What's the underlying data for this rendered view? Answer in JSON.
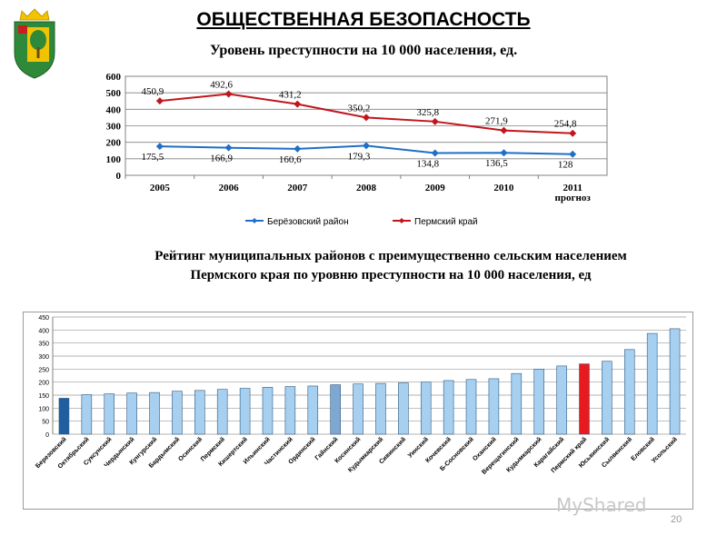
{
  "header": {
    "title": "ОБЩЕСТВЕННАЯ БЕЗОПАСНОСТЬ",
    "emblem_icon": "coat-of-arms-icon",
    "colors": {
      "emblem_green": "#2e8a3a",
      "emblem_gold": "#f2c300",
      "emblem_red": "#c81e1e"
    }
  },
  "chart_data": [
    {
      "type": "line",
      "title": "Уровень преступности на 10 000 населения, ед.",
      "categories": [
        "2005",
        "2006",
        "2007",
        "2008",
        "2009",
        "2010",
        "2011 прогноз"
      ],
      "ylim": [
        0,
        600
      ],
      "yticks": [
        0,
        100,
        200,
        300,
        400,
        500,
        600
      ],
      "grid": true,
      "legend_position": "bottom",
      "series": [
        {
          "name": "Берёзовский район",
          "color": "#1f6fc6",
          "values": [
            175.5,
            166.9,
            160.6,
            179.3,
            134.8,
            136.5,
            128
          ],
          "labels": [
            "175,5",
            "166,9",
            "160,6",
            "179,3",
            "134,8",
            "136,5",
            "128"
          ]
        },
        {
          "name": "Пермский край",
          "color": "#c0161c",
          "values": [
            450.9,
            492.6,
            431.2,
            350.2,
            325.8,
            271.9,
            254.8
          ],
          "labels": [
            "450,9",
            "492,6",
            "431,2",
            "350,2",
            "325,8",
            "271,9",
            "254,8"
          ]
        }
      ]
    },
    {
      "type": "bar",
      "title_lines": [
        "Рейтинг муниципальных районов с преимущественно сельским населением",
        "Пермского края по уровню преступности на 10 000 населения, ед"
      ],
      "ylim": [
        0,
        450
      ],
      "yticks": [
        0,
        50,
        100,
        150,
        200,
        250,
        300,
        350,
        400,
        450
      ],
      "grid": true,
      "default_color": "#a6cff0",
      "categories": [
        "Березовский",
        "Октябрьский",
        "Суксунский",
        "Чердынский",
        "Кунгурский",
        "Бардымский",
        "Осинский",
        "Пермский",
        "Кишертский",
        "Ильинский",
        "Частинский",
        "Ординский",
        "Гайнский",
        "Косинский",
        "Кудымкарский",
        "Сивинский",
        "Уинский",
        "Кочевский",
        "Б-Сосновский",
        "Оханский",
        "Верещагинский",
        "Кудымкарский",
        "Карагайский",
        "Пермский край",
        "Юсьвинский",
        "Сылвенский",
        "Еловский",
        "Усольский"
      ],
      "values": [
        138,
        152,
        155,
        158,
        160,
        165,
        168,
        172,
        176,
        180,
        183,
        185,
        190,
        193,
        195,
        197,
        200,
        206,
        210,
        213,
        233,
        250,
        262,
        270,
        280,
        325,
        387,
        405
      ],
      "highlight": {
        "0": "#1f5fa0",
        "12": "#7fa8d0",
        "23": "#e8191f"
      }
    }
  ],
  "watermark": "MyShared",
  "page_number": "20"
}
